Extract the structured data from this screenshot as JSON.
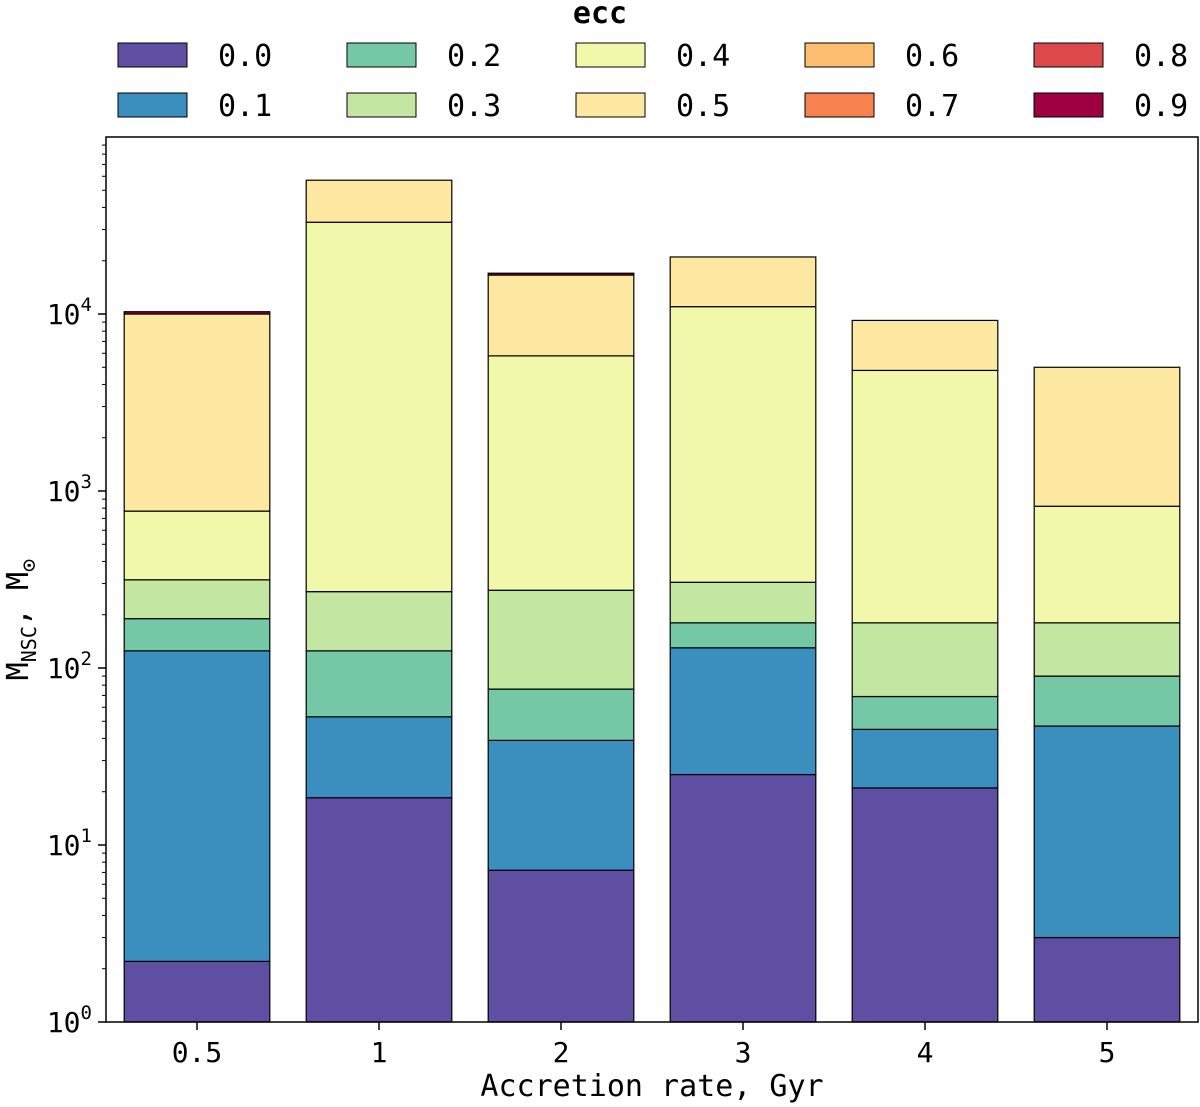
{
  "chart_data": {
    "type": "bar",
    "stacked": true,
    "title": "",
    "xlabel": "Accretion rate, Gyr",
    "ylabel": "M",
    "ylabel_sub": "NSC",
    "ylabel_suffix": ", M",
    "ylabel_sub2": "⊙",
    "yscale": "log",
    "ylim": [
      1,
      100000
    ],
    "yticks": [
      {
        "value": 1,
        "base": "10",
        "exp": "0"
      },
      {
        "value": 10,
        "base": "10",
        "exp": "1"
      },
      {
        "value": 100,
        "base": "10",
        "exp": "2"
      },
      {
        "value": 1000,
        "base": "10",
        "exp": "3"
      },
      {
        "value": 10000,
        "base": "10",
        "exp": "4"
      }
    ],
    "grid": false,
    "categories": [
      "0.5",
      "1",
      "2",
      "3",
      "4",
      "5"
    ],
    "legend": {
      "title": "ecc",
      "placement": "top",
      "items": [
        {
          "label": "0.0",
          "color": "#5e4fa2"
        },
        {
          "label": "0.1",
          "color": "#3a8fbf"
        },
        {
          "label": "0.2",
          "color": "#74c8a5"
        },
        {
          "label": "0.3",
          "color": "#c3e6a0"
        },
        {
          "label": "0.4",
          "color": "#f2f8aa"
        },
        {
          "label": "0.5",
          "color": "#fde8a2"
        },
        {
          "label": "0.6",
          "color": "#fdbd6f"
        },
        {
          "label": "0.7",
          "color": "#f88150"
        },
        {
          "label": "0.8",
          "color": "#dc4a4c"
        },
        {
          "label": "0.9",
          "color": "#9e0142"
        }
      ]
    },
    "cumulative_tops": [
      [
        2.2,
        125,
        190,
        315,
        770,
        10000,
        10000,
        10000,
        10000,
        10300
      ],
      [
        18.5,
        53,
        125,
        270,
        33000,
        57000,
        57000,
        57000,
        57000,
        57000
      ],
      [
        7.2,
        39,
        76,
        275,
        5800,
        16600,
        16600,
        16600,
        16600,
        17000
      ],
      [
        25,
        130,
        180,
        305,
        11000,
        21000,
        21000,
        21000,
        21000,
        21000
      ],
      [
        21,
        45,
        69,
        180,
        4800,
        9200,
        9200,
        9200,
        9200,
        9200
      ],
      [
        3.0,
        47,
        90,
        180,
        820,
        5000,
        5000,
        5000,
        5000,
        5000
      ]
    ]
  }
}
